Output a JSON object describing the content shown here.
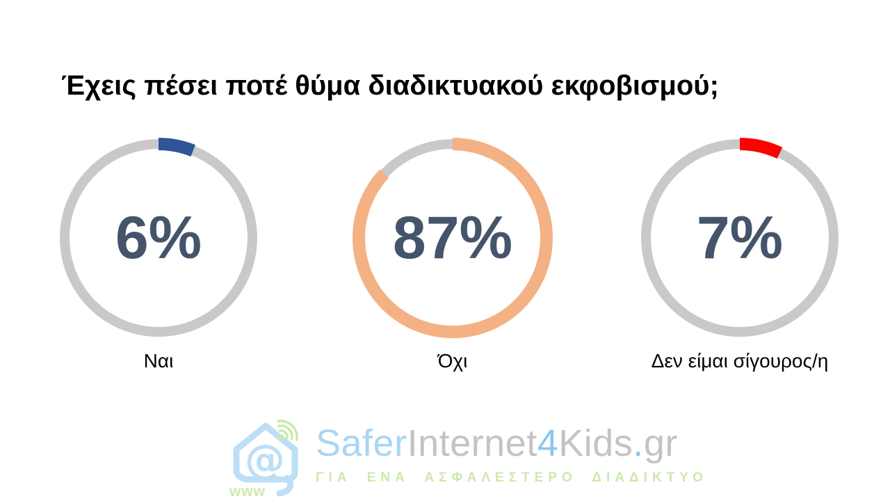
{
  "title": "Έχεις πέσει ποτέ θύμα διαδικτυακού εκφοβισμού;",
  "chart_data": {
    "type": "pie",
    "subtype": "donut-gauge-multiples",
    "title": "Έχεις πέσει ποτέ θύμα διαδικτυακού εκφοβισμού;",
    "categories": [
      "Ναι",
      "Όχι",
      "Δεν είμαι σίγουρος/η"
    ],
    "values": [
      6,
      87,
      7
    ],
    "start_angle": "12-oclock-clockwise",
    "value_text_color": "#44546A",
    "donuts": [
      {
        "label": "Ναι",
        "value": 6,
        "display": "6%",
        "segment_color": "#2F5597",
        "track_color": "#C9C9C9"
      },
      {
        "label": "Όχι",
        "value": 87,
        "display": "87%",
        "segment_color": "#F4B183",
        "track_color": "#C9C9C9"
      },
      {
        "label": "Δεν είμαι σίγουρος/η",
        "value": 7,
        "display": "7%",
        "segment_color": "#FF0000",
        "track_color": "#C9C9C9"
      }
    ]
  },
  "watermark": {
    "brand_parts": [
      {
        "text": "Safer",
        "color": "#A8D6F4"
      },
      {
        "text": "Internet",
        "color": "#C3C3C3"
      },
      {
        "text": "4",
        "color": "#8CC6F0"
      },
      {
        "text": "Kids",
        "color": "#C3C3C3"
      },
      {
        "text": ".",
        "color": "#8CC6F0"
      },
      {
        "text": "gr",
        "color": "#C3C3C3"
      }
    ],
    "tagline": "ΓΙΑ ΕΝΑ ΑΣΦΑΛΕΣΤΕΡΟ ΔΙΑΔΙΚΤΥΟ",
    "tagline_color": "#CDE8AC",
    "icon": {
      "house_color": "#BCDFF6",
      "accent_color": "#CDE8AC",
      "www_label": "www",
      "at_symbol": "@"
    }
  }
}
